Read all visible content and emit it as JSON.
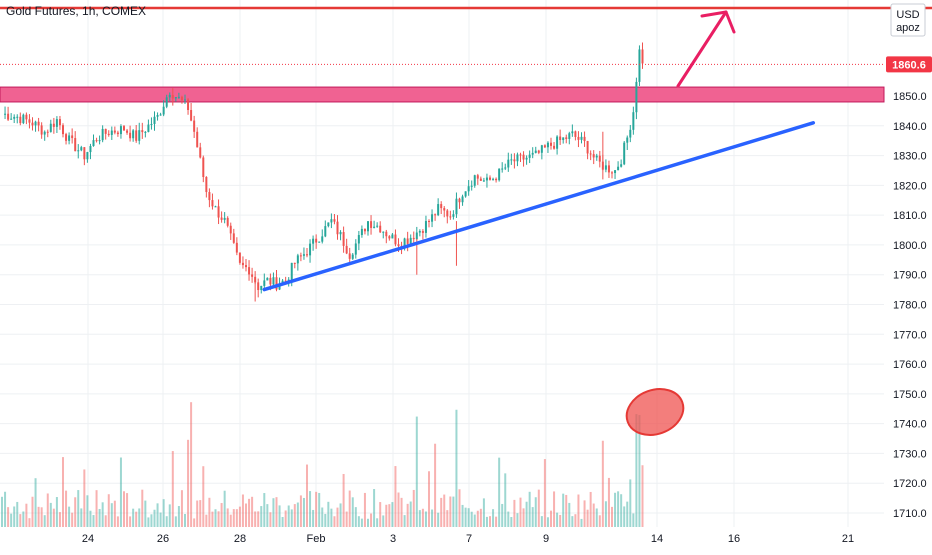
{
  "title": "Gold Futures, 1h, COMEX",
  "chart_data": {
    "type": "candlestick",
    "title": "Gold Futures, 1h, COMEX",
    "currency": "USD",
    "currency_sub": "apoz",
    "last_price": 1860.6,
    "last_price_label": "1860.6",
    "y_ticks": [
      1710,
      1720,
      1730,
      1740,
      1750,
      1760,
      1770,
      1780,
      1790,
      1800,
      1810,
      1820,
      1830,
      1840,
      1850
    ],
    "y_tick_labels": [
      "1710.0",
      "1720.0",
      "1730.0",
      "1740.0",
      "1750.0",
      "1760.0",
      "1770.0",
      "1780.0",
      "1790.0",
      "1800.0",
      "1810.0",
      "1820.0",
      "1830.0",
      "1840.0",
      "1850.0"
    ],
    "ylim": [
      1706,
      1874
    ],
    "x_ticks": [
      "24",
      "26",
      "28",
      "Feb",
      "3",
      "7",
      "9",
      "14",
      "16",
      "21"
    ],
    "grid": true,
    "colors": {
      "up": "#26a69a",
      "down": "#ef5350",
      "zone": "#f06292",
      "trendline": "#2962ff",
      "arrow": "#e91e63",
      "circle": "#ef5350",
      "price_label": "#f23645"
    },
    "price_path": [
      [
        0,
        1844
      ],
      [
        5,
        1843
      ],
      [
        10,
        1841
      ],
      [
        14,
        1838
      ],
      [
        18,
        1842
      ],
      [
        22,
        1835
      ],
      [
        27,
        1830
      ],
      [
        31,
        1836
      ],
      [
        35,
        1838
      ],
      [
        40,
        1839
      ],
      [
        44,
        1836
      ],
      [
        48,
        1840
      ],
      [
        51,
        1843
      ],
      [
        55,
        1852
      ],
      [
        58,
        1849
      ],
      [
        61,
        1846
      ],
      [
        63,
        1838
      ],
      [
        65,
        1828
      ],
      [
        67,
        1818
      ],
      [
        70,
        1812
      ],
      [
        73,
        1808
      ],
      [
        75,
        1802
      ],
      [
        78,
        1793
      ],
      [
        81,
        1792
      ],
      [
        84,
        1786
      ],
      [
        87,
        1788
      ],
      [
        90,
        1787
      ],
      [
        93,
        1788
      ],
      [
        96,
        1794
      ],
      [
        100,
        1798
      ],
      [
        104,
        1803
      ],
      [
        108,
        1808
      ],
      [
        111,
        1803
      ],
      [
        114,
        1797
      ],
      [
        117,
        1802
      ],
      [
        120,
        1808
      ],
      [
        124,
        1806
      ],
      [
        127,
        1803
      ],
      [
        130,
        1801
      ],
      [
        133,
        1802
      ],
      [
        137,
        1805
      ],
      [
        140,
        1808
      ],
      [
        143,
        1812
      ],
      [
        147,
        1810
      ],
      [
        151,
        1818
      ],
      [
        155,
        1823
      ],
      [
        159,
        1821
      ],
      [
        163,
        1824
      ],
      [
        167,
        1828
      ],
      [
        171,
        1829
      ],
      [
        175,
        1830
      ],
      [
        179,
        1833
      ],
      [
        183,
        1835
      ],
      [
        187,
        1837
      ],
      [
        191,
        1834
      ],
      [
        195,
        1828
      ],
      [
        198,
        1826
      ],
      [
        201,
        1825
      ],
      [
        203,
        1829
      ],
      [
        205,
        1836
      ],
      [
        207,
        1845
      ],
      [
        208,
        1856
      ],
      [
        209,
        1865
      ],
      [
        210,
        1862
      ]
    ],
    "trendline": {
      "from": {
        "x": 86,
        "price": 1785
      },
      "to": {
        "x": 266,
        "price": 1841
      }
    },
    "resistance_zone": {
      "low": 1848,
      "high": 1853
    },
    "annotations": [
      "resistance zone",
      "rising trendline",
      "upward arrow",
      "volume spike circle"
    ]
  }
}
